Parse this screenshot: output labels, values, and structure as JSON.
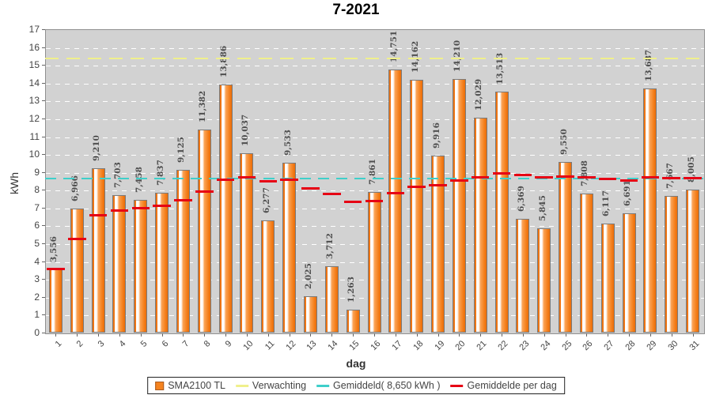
{
  "title": "7-2021",
  "y_axis": {
    "label": "kWh",
    "min": 0,
    "max": 17,
    "tick_step": 1
  },
  "x_axis": {
    "label": "dag"
  },
  "legend": {
    "items": [
      {
        "label": "SMA2100 TL",
        "swatch": "square",
        "color": "#f5831f"
      },
      {
        "label": "Verwachting",
        "swatch": "line",
        "color": "#f0f08c"
      },
      {
        "label": "Gemiddeld( 8,650 kWh )",
        "swatch": "line",
        "color": "#3fcfca"
      },
      {
        "label": "Gemiddelde per dag",
        "swatch": "line",
        "color": "#e60014"
      }
    ]
  },
  "colors": {
    "plot_background": "#d2d2d2",
    "bar_main": "#f58220",
    "verwachting_line": "#f0f08c",
    "gemiddeld_line": "#3fcfca",
    "gemiddelde_per_dag_line": "#e60014",
    "gridline": "#ffffff"
  },
  "chart_data": {
    "type": "bar",
    "title": "7-2021",
    "xlabel": "dag",
    "ylabel": "kWh",
    "ylim": [
      0,
      17
    ],
    "grid": "horizontal-dashed",
    "legend_position": "bottom-center",
    "categories": [
      1,
      2,
      3,
      4,
      5,
      6,
      7,
      8,
      9,
      10,
      11,
      12,
      13,
      14,
      15,
      16,
      17,
      18,
      19,
      20,
      21,
      22,
      23,
      24,
      25,
      26,
      27,
      28,
      29,
      30,
      31
    ],
    "series": [
      {
        "name": "SMA2100 TL",
        "type": "bar",
        "unit": "kWh",
        "values": [
          3.556,
          6.966,
          9.21,
          7.703,
          7.458,
          7.837,
          9.125,
          11.382,
          13.886,
          10.037,
          6.277,
          9.533,
          2.025,
          3.712,
          1.263,
          7.861,
          14.751,
          14.162,
          9.916,
          14.21,
          12.029,
          13.513,
          6.369,
          5.845,
          9.55,
          7.808,
          6.117,
          6.691,
          13.687,
          7.667,
          8.005
        ],
        "bar_labels": [
          "3,556",
          "6,966",
          "9,210",
          "7,703",
          "7,458",
          "7,837",
          "9,125",
          "11,382",
          "13,886",
          "10,037",
          "6,277",
          "9,533",
          "2,025",
          "3,712",
          "1,263",
          "7,861",
          "14,751",
          "14,162",
          "9,916",
          "14,210",
          "12,029",
          "13,513",
          "6,369",
          "5,845",
          "9,550",
          "7,808",
          "6,117",
          "6,691",
          "13,687",
          "7,667",
          "8,005"
        ]
      },
      {
        "name": "Verwachting",
        "type": "hline",
        "value": 15.35
      },
      {
        "name": "Gemiddeld( 8,650 kWh )",
        "type": "hline",
        "value": 8.65
      },
      {
        "name": "Gemiddelde per dag",
        "type": "step-segments",
        "values": [
          3.556,
          5.261,
          6.577,
          6.859,
          6.979,
          7.122,
          7.408,
          7.905,
          8.569,
          8.716,
          8.494,
          8.581,
          8.077,
          7.765,
          7.331,
          7.364,
          7.799,
          8.152,
          8.245,
          8.544,
          8.71,
          8.928,
          8.817,
          8.693,
          8.727,
          8.692,
          8.596,
          8.528,
          8.706,
          8.672,
          8.65
        ]
      }
    ]
  }
}
